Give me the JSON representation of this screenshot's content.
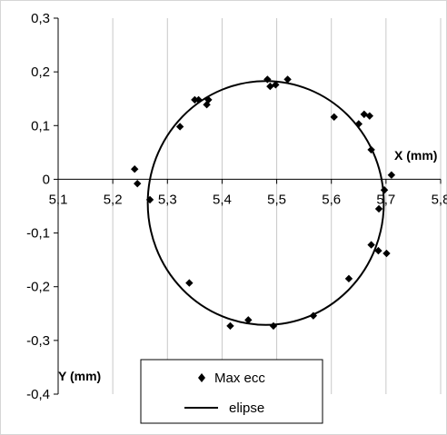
{
  "chart_data": {
    "type": "scatter",
    "x_axis_title": "X (mm)",
    "y_axis_title": "Y (mm)",
    "xlim": [
      5.1,
      5.8
    ],
    "ylim": [
      -0.4,
      0.3
    ],
    "x_ticks": [
      5.1,
      5.2,
      5.3,
      5.4,
      5.5,
      5.6,
      5.7,
      5.8
    ],
    "x_tick_labels": [
      "5,1",
      "5,2",
      "5,3",
      "5,4",
      "5,5",
      "5,6",
      "5,7",
      "5,8"
    ],
    "y_ticks": [
      0.3,
      0.2,
      0.1,
      0,
      -0.1,
      -0.2,
      -0.3,
      -0.4
    ],
    "y_tick_labels": [
      "0,3",
      "0,2",
      "0,1",
      "0",
      "-0,1",
      "-0,2",
      "-0,3",
      "-0,4"
    ],
    "grid": "vertical",
    "legend_position": "bottom-center",
    "legend": [
      {
        "label": "Max ecc",
        "marker": "diamond"
      },
      {
        "label": "elipse",
        "marker": "line"
      }
    ],
    "series": [
      {
        "name": "Max ecc",
        "kind": "scatter",
        "points": [
          [
            5.483,
            0.186
          ],
          [
            5.498,
            0.176
          ],
          [
            5.52,
            0.186
          ],
          [
            5.488,
            0.173
          ],
          [
            5.605,
            0.116
          ],
          [
            5.66,
            0.121
          ],
          [
            5.65,
            0.103
          ],
          [
            5.67,
            0.118
          ],
          [
            5.35,
            0.148
          ],
          [
            5.357,
            0.148
          ],
          [
            5.375,
            0.148
          ],
          [
            5.372,
            0.139
          ],
          [
            5.323,
            0.098
          ],
          [
            5.24,
            0.019
          ],
          [
            5.245,
            -0.008
          ],
          [
            5.268,
            -0.038
          ],
          [
            5.673,
            0.055
          ],
          [
            5.71,
            0.008
          ],
          [
            5.697,
            -0.02
          ],
          [
            5.687,
            -0.055
          ],
          [
            5.673,
            -0.122
          ],
          [
            5.686,
            -0.133
          ],
          [
            5.701,
            -0.138
          ],
          [
            5.632,
            -0.185
          ],
          [
            5.34,
            -0.193
          ],
          [
            5.448,
            -0.262
          ],
          [
            5.415,
            -0.273
          ],
          [
            5.494,
            -0.273
          ],
          [
            5.567,
            -0.254
          ]
        ]
      },
      {
        "name": "elipse",
        "kind": "ellipse",
        "center": [
          5.48,
          -0.044
        ],
        "radius_x": 0.216,
        "radius_y": 0.227
      }
    ]
  }
}
